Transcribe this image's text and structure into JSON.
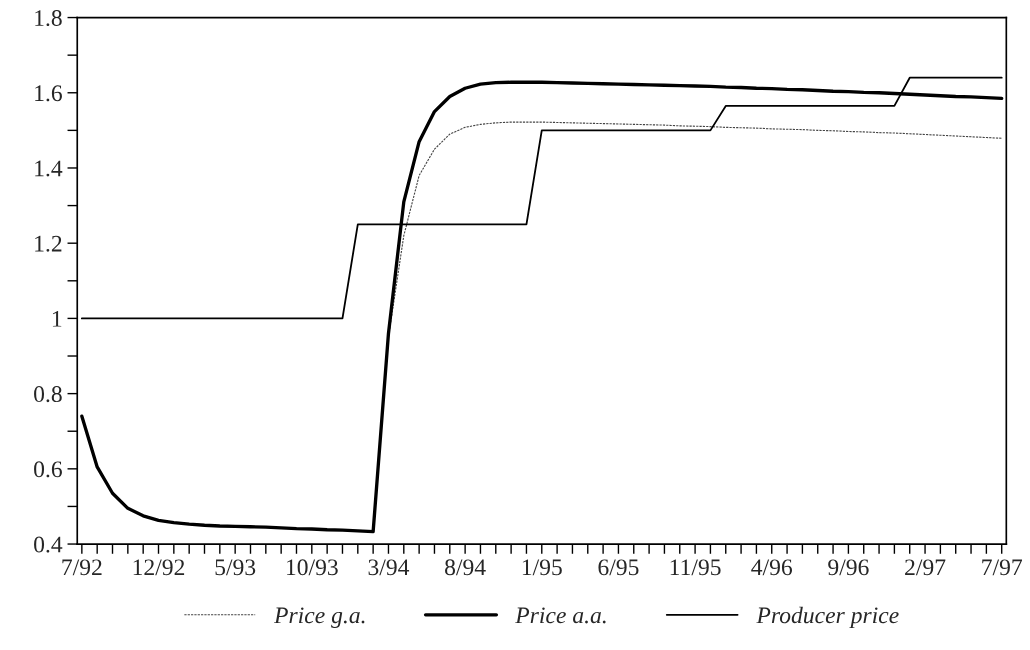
{
  "chart_data": {
    "type": "line",
    "categories": [
      "7/92",
      null,
      null,
      null,
      null,
      "12/92",
      null,
      null,
      null,
      null,
      "5/93",
      null,
      null,
      null,
      null,
      "10/93",
      null,
      null,
      null,
      null,
      "3/94",
      null,
      null,
      null,
      null,
      "8/94",
      null,
      null,
      null,
      null,
      "1/95",
      null,
      null,
      null,
      null,
      "6/95",
      null,
      null,
      null,
      null,
      "11/95",
      null,
      null,
      null,
      null,
      "4/96",
      null,
      null,
      null,
      null,
      "9/96",
      null,
      null,
      null,
      null,
      "2/97",
      null,
      null,
      null,
      null,
      "7/97"
    ],
    "series": [
      {
        "name": "Price g.a.",
        "color": "#444444",
        "line_style": "dotted",
        "values": [
          null,
          null,
          null,
          null,
          null,
          null,
          null,
          null,
          null,
          null,
          null,
          null,
          null,
          null,
          null,
          null,
          null,
          null,
          null,
          0.433,
          0.95,
          1.22,
          1.38,
          1.45,
          1.49,
          1.508,
          1.516,
          1.52,
          1.522,
          1.522,
          1.522,
          1.521,
          1.52,
          1.519,
          1.518,
          1.517,
          1.516,
          1.515,
          1.514,
          1.512,
          1.511,
          1.51,
          1.508,
          1.507,
          1.506,
          1.504,
          1.503,
          1.502,
          1.5,
          1.499,
          1.497,
          1.496,
          1.494,
          1.493,
          1.491,
          1.489,
          1.487,
          1.485,
          1.483,
          1.481,
          1.479
        ]
      },
      {
        "name": "Price a.a.",
        "color": "#000000",
        "line_style": "solid",
        "values": [
          0.74,
          0.605,
          0.535,
          0.495,
          0.475,
          0.463,
          0.457,
          0.453,
          0.45,
          0.448,
          0.447,
          0.446,
          0.445,
          0.443,
          0.441,
          0.44,
          0.438,
          0.437,
          0.435,
          0.433,
          0.96,
          1.31,
          1.47,
          1.55,
          1.59,
          1.612,
          1.623,
          1.627,
          1.628,
          1.628,
          1.628,
          1.627,
          1.626,
          1.625,
          1.624,
          1.623,
          1.622,
          1.621,
          1.62,
          1.619,
          1.618,
          1.617,
          1.615,
          1.614,
          1.612,
          1.611,
          1.609,
          1.608,
          1.606,
          1.604,
          1.603,
          1.601,
          1.6,
          1.598,
          1.596,
          1.594,
          1.592,
          1.59,
          1.589,
          1.587,
          1.585
        ]
      },
      {
        "name": "Producer price",
        "color": "#000000",
        "line_style": "solid",
        "values": [
          1,
          1,
          1,
          1,
          1,
          1,
          1,
          1,
          1,
          1,
          1,
          1,
          1,
          1,
          1,
          1,
          1,
          1,
          1.25,
          1.25,
          1.25,
          1.25,
          1.25,
          1.25,
          1.25,
          1.25,
          1.25,
          1.25,
          1.25,
          1.25,
          1.5,
          1.5,
          1.5,
          1.5,
          1.5,
          1.5,
          1.5,
          1.5,
          1.5,
          1.5,
          1.5,
          1.5,
          1.565,
          1.565,
          1.565,
          1.565,
          1.565,
          1.565,
          1.565,
          1.565,
          1.565,
          1.565,
          1.565,
          1.565,
          1.64,
          1.64,
          1.64,
          1.64,
          1.64,
          1.64,
          1.64
        ]
      }
    ],
    "ylim": [
      0.4,
      1.8
    ],
    "yticks": [
      0.4,
      {
        "value": 0.5,
        "label": null
      },
      0.6,
      {
        "value": 0.7,
        "label": null
      },
      0.8,
      {
        "value": 0.9,
        "label": null
      },
      {
        "value": 1,
        "label": "1"
      },
      {
        "value": 1.1,
        "label": null
      },
      1.2,
      {
        "value": 1.3,
        "label": null
      },
      1.4,
      {
        "value": 1.5,
        "label": null
      },
      1.6,
      {
        "value": 1.7,
        "label": null
      },
      1.8
    ],
    "grid": false,
    "legend": "bottom",
    "marker": "none"
  }
}
